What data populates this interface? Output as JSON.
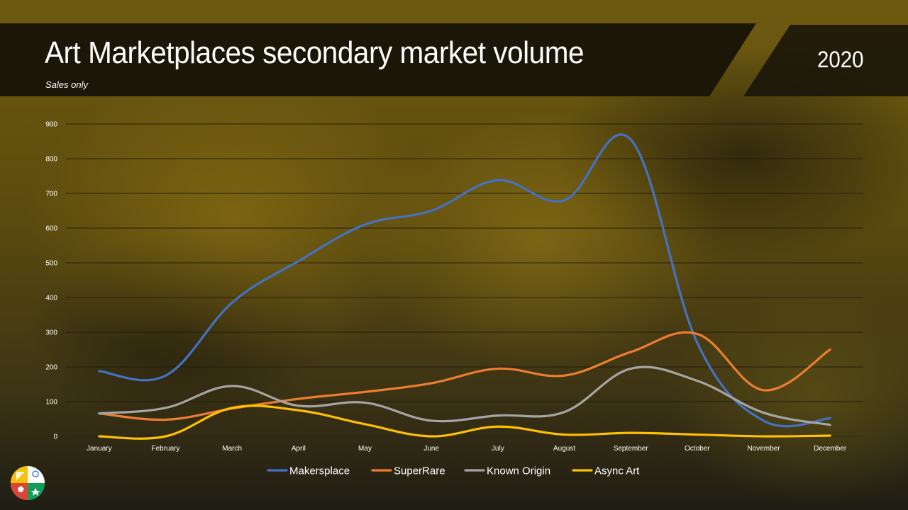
{
  "slide": {
    "title": "Art Marketplaces secondary market volume",
    "subtitle": "Sales only",
    "year": "2020"
  },
  "chart_data": {
    "type": "line",
    "title": "",
    "xlabel": "",
    "ylabel": "",
    "categories": [
      "January",
      "February",
      "March",
      "April",
      "May",
      "June",
      "July",
      "August",
      "September",
      "October",
      "November",
      "December"
    ],
    "y_ticks": [
      "0",
      "100",
      "200",
      "300",
      "400",
      "500",
      "600",
      "700",
      "800",
      "900"
    ],
    "ylim": [
      0,
      900
    ],
    "grid": true,
    "legend_position": "bottom",
    "series": [
      {
        "name": "Makersplace",
        "color": "#4472c4",
        "values": [
          188,
          175,
          385,
          505,
          610,
          650,
          738,
          680,
          855,
          270,
          45,
          52
        ]
      },
      {
        "name": "SuperRare",
        "color": "#ed7d31",
        "values": [
          66,
          48,
          80,
          108,
          128,
          153,
          195,
          175,
          243,
          295,
          133,
          250
        ]
      },
      {
        "name": "Known Origin",
        "color": "#a5a5a5",
        "values": [
          66,
          82,
          145,
          88,
          97,
          45,
          60,
          70,
          195,
          160,
          68,
          33
        ]
      },
      {
        "name": "Async Art",
        "color": "#ffc000",
        "values": [
          0,
          0,
          82,
          75,
          35,
          0,
          28,
          5,
          10,
          5,
          0,
          2
        ]
      }
    ]
  },
  "logo": {
    "icon": "colorful-circle-logo-icon"
  }
}
